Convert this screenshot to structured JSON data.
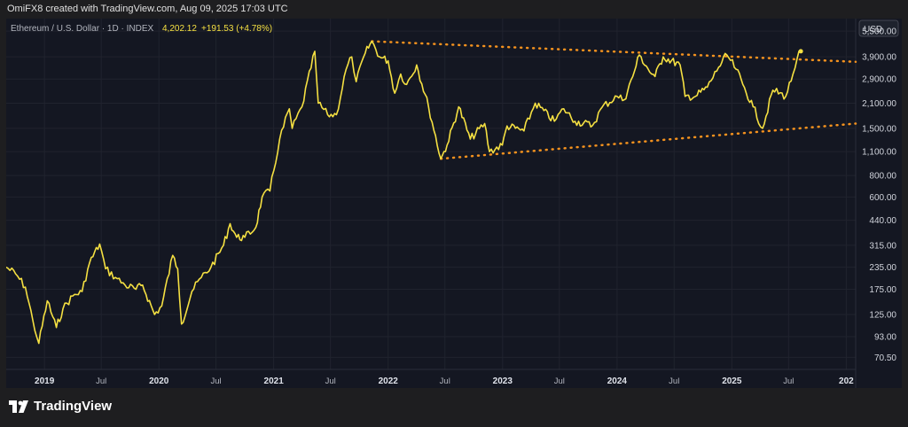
{
  "header": {
    "caption": "OmiFX8 created with TradingView.com, Aug 09, 2025 17:03 UTC"
  },
  "symbol": {
    "name": "Ethereum / U.S. Dollar · 1D · INDEX",
    "price": "4,202.12",
    "change": "+191.53 (+4.78%)"
  },
  "currency": "USD",
  "footer": {
    "brand": "TradingView"
  },
  "colors": {
    "line": "#f5e042",
    "trend": "#f5921e",
    "background": "#141722",
    "grid": "#20232e"
  },
  "chart_data": {
    "type": "line",
    "scale": "log",
    "ylim": [
      60,
      6500
    ],
    "xlim": [
      "2018-09-01",
      "2026-01-31"
    ],
    "y_ticks": [
      5500,
      3900,
      2900,
      2100,
      1500,
      1100,
      800,
      600,
      440,
      315,
      235,
      175,
      125,
      93,
      70.5
    ],
    "y_tick_labels": [
      "5,500.00",
      "3,900.00",
      "2,900.00",
      "2,100.00",
      "1,500.00",
      "1,100.00",
      "800.00",
      "600.00",
      "440.00",
      "315.00",
      "235.00",
      "175.00",
      "125.00",
      "93.00",
      "70.50"
    ],
    "x_ticks": [
      {
        "label": "2019",
        "date": "2019-01-01",
        "major": true
      },
      {
        "label": "Jul",
        "date": "2019-07-01",
        "major": false
      },
      {
        "label": "2020",
        "date": "2020-01-01",
        "major": true
      },
      {
        "label": "Jul",
        "date": "2020-07-01",
        "major": false
      },
      {
        "label": "2021",
        "date": "2021-01-01",
        "major": true
      },
      {
        "label": "Jul",
        "date": "2021-07-01",
        "major": false
      },
      {
        "label": "2022",
        "date": "2022-01-01",
        "major": true
      },
      {
        "label": "Jul",
        "date": "2022-07-01",
        "major": false
      },
      {
        "label": "2023",
        "date": "2023-01-01",
        "major": true
      },
      {
        "label": "Jul",
        "date": "2023-07-01",
        "major": false
      },
      {
        "label": "2024",
        "date": "2024-01-01",
        "major": true
      },
      {
        "label": "Jul",
        "date": "2024-07-01",
        "major": false
      },
      {
        "label": "2025",
        "date": "2025-01-01",
        "major": true
      },
      {
        "label": "Jul",
        "date": "2025-07-01",
        "major": false
      },
      {
        "label": "202",
        "date": "2026-01-01",
        "major": true
      }
    ],
    "series": [
      {
        "points": [
          [
            "2018-09-01",
            235
          ],
          [
            "2018-10-01",
            215
          ],
          [
            "2018-11-01",
            180
          ],
          [
            "2018-11-25",
            115
          ],
          [
            "2018-12-14",
            85
          ],
          [
            "2019-01-10",
            150
          ],
          [
            "2019-02-08",
            105
          ],
          [
            "2019-03-01",
            135
          ],
          [
            "2019-04-01",
            160
          ],
          [
            "2019-05-01",
            170
          ],
          [
            "2019-05-25",
            250
          ],
          [
            "2019-06-26",
            320
          ],
          [
            "2019-07-15",
            230
          ],
          [
            "2019-08-15",
            205
          ],
          [
            "2019-09-15",
            185
          ],
          [
            "2019-10-20",
            175
          ],
          [
            "2019-11-10",
            185
          ],
          [
            "2019-12-18",
            125
          ],
          [
            "2020-01-10",
            140
          ],
          [
            "2020-02-14",
            275
          ],
          [
            "2020-03-01",
            230
          ],
          [
            "2020-03-13",
            110
          ],
          [
            "2020-04-15",
            170
          ],
          [
            "2020-05-15",
            205
          ],
          [
            "2020-06-15",
            235
          ],
          [
            "2020-07-25",
            315
          ],
          [
            "2020-08-15",
            420
          ],
          [
            "2020-09-05",
            350
          ],
          [
            "2020-10-01",
            350
          ],
          [
            "2020-11-05",
            400
          ],
          [
            "2020-11-25",
            600
          ],
          [
            "2020-12-20",
            650
          ],
          [
            "2021-01-20",
            1300
          ],
          [
            "2021-02-20",
            1950
          ],
          [
            "2021-03-01",
            1500
          ],
          [
            "2021-04-01",
            2000
          ],
          [
            "2021-05-12",
            4200
          ],
          [
            "2021-05-23",
            2100
          ],
          [
            "2021-06-22",
            1800
          ],
          [
            "2021-07-20",
            1800
          ],
          [
            "2021-08-20",
            3300
          ],
          [
            "2021-09-07",
            3900
          ],
          [
            "2021-09-21",
            2800
          ],
          [
            "2021-10-20",
            4100
          ],
          [
            "2021-11-10",
            4800
          ],
          [
            "2021-12-05",
            3900
          ],
          [
            "2022-01-01",
            3700
          ],
          [
            "2022-01-22",
            2400
          ],
          [
            "2022-02-10",
            3100
          ],
          [
            "2022-03-01",
            2700
          ],
          [
            "2022-04-02",
            3500
          ],
          [
            "2022-05-10",
            2000
          ],
          [
            "2022-06-18",
            1000
          ],
          [
            "2022-07-08",
            1200
          ],
          [
            "2022-08-14",
            2000
          ],
          [
            "2022-09-20",
            1300
          ],
          [
            "2022-11-05",
            1600
          ],
          [
            "2022-11-20",
            1100
          ],
          [
            "2022-12-31",
            1200
          ],
          [
            "2023-01-15",
            1550
          ],
          [
            "2023-03-10",
            1450
          ],
          [
            "2023-04-15",
            2100
          ],
          [
            "2023-06-15",
            1650
          ],
          [
            "2023-07-15",
            1950
          ],
          [
            "2023-08-20",
            1650
          ],
          [
            "2023-10-15",
            1560
          ],
          [
            "2023-11-15",
            2000
          ],
          [
            "2024-01-01",
            2300
          ],
          [
            "2024-01-24",
            2200
          ],
          [
            "2024-02-20",
            3000
          ],
          [
            "2024-03-12",
            4000
          ],
          [
            "2024-04-20",
            3100
          ],
          [
            "2024-05-01",
            3000
          ],
          [
            "2024-05-27",
            3900
          ],
          [
            "2024-07-20",
            3500
          ],
          [
            "2024-08-05",
            2300
          ],
          [
            "2024-09-07",
            2300
          ],
          [
            "2024-10-15",
            2600
          ],
          [
            "2024-11-20",
            3400
          ],
          [
            "2024-12-16",
            4000
          ],
          [
            "2025-01-15",
            3300
          ],
          [
            "2025-02-05",
            2700
          ],
          [
            "2025-03-10",
            2000
          ],
          [
            "2025-04-09",
            1500
          ],
          [
            "2025-05-12",
            2500
          ],
          [
            "2025-06-22",
            2300
          ],
          [
            "2025-07-15",
            3100
          ],
          [
            "2025-07-28",
            3800
          ],
          [
            "2025-08-09",
            4200
          ]
        ]
      }
    ],
    "trendlines": [
      {
        "points": [
          [
            "2021-11-10",
            4800
          ],
          [
            "2026-01-31",
            3650
          ]
        ]
      },
      {
        "points": [
          [
            "2022-06-18",
            1000
          ],
          [
            "2026-01-31",
            1600
          ]
        ]
      }
    ]
  }
}
